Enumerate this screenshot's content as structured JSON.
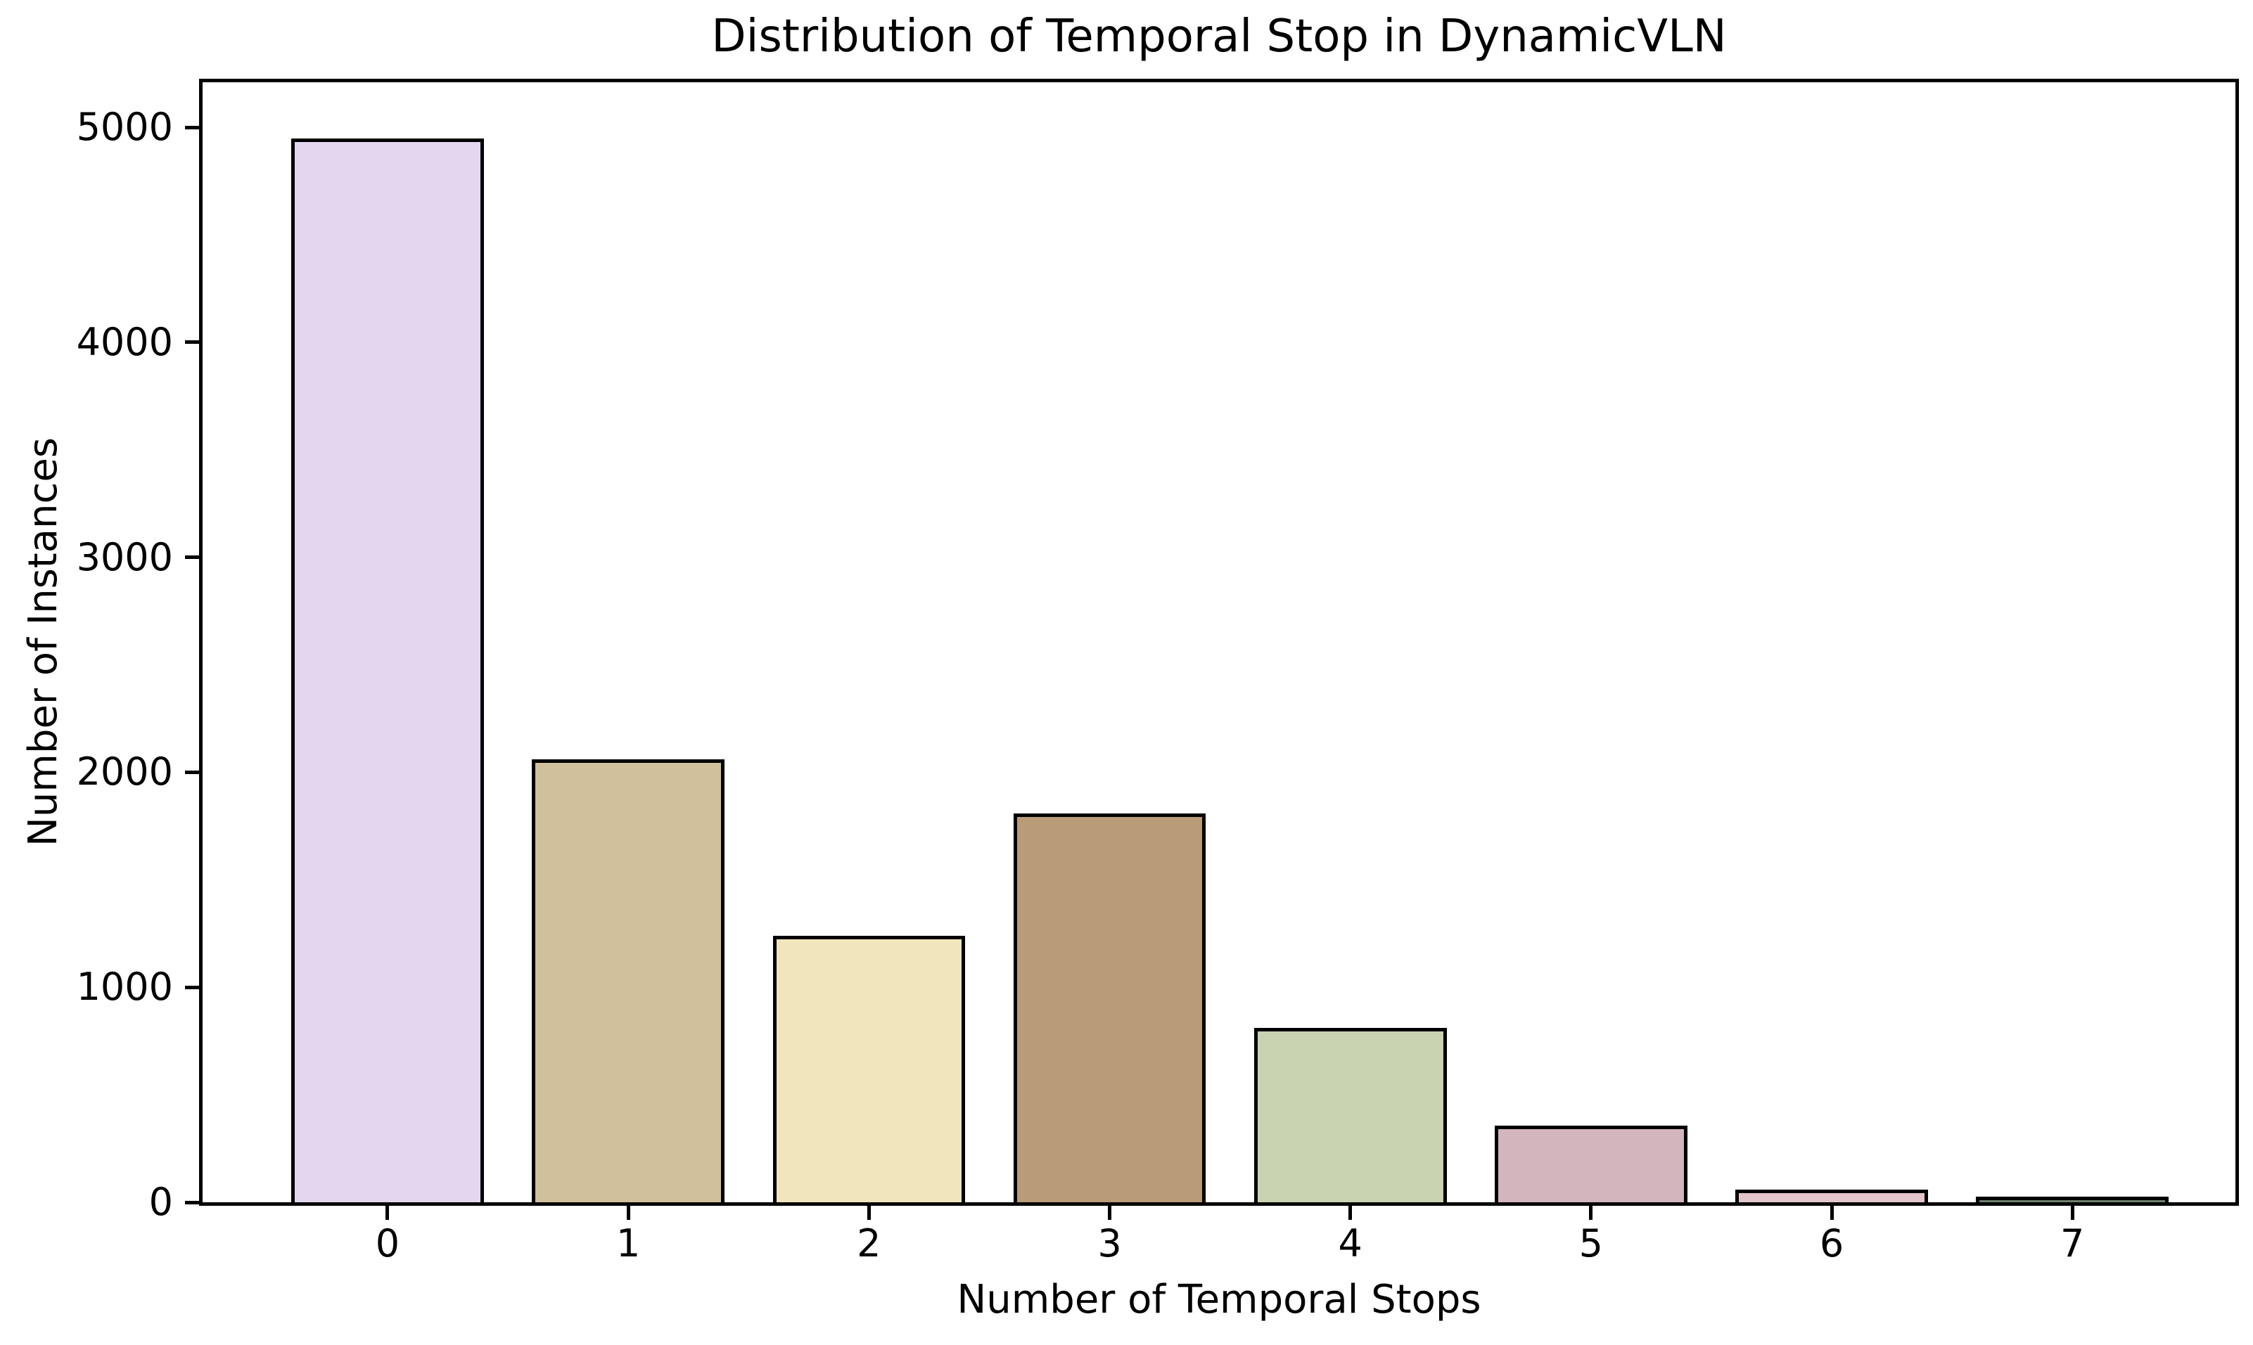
{
  "chart_data": {
    "type": "bar",
    "title": "Distribution of Temporal Stop in DynamicVLN",
    "xlabel": "Number of Temporal Stops",
    "ylabel": "Number of Instances",
    "categories": [
      "0",
      "1",
      "2",
      "3",
      "4",
      "5",
      "6",
      "7"
    ],
    "values": [
      4950,
      2060,
      1240,
      1810,
      810,
      355,
      60,
      25
    ],
    "bar_colors": [
      "#e3d7ef",
      "#d1c09c",
      "#f1e5bd",
      "#b99b77",
      "#c9d3b2",
      "#d3b5be",
      "#e3c6c9",
      "#6f7f6e"
    ],
    "edge_color": "#000000",
    "background_color": "#ffffff",
    "yticks": [
      0,
      1000,
      2000,
      3000,
      4000,
      5000
    ],
    "ylim": [
      0,
      5210
    ],
    "grid": false,
    "legend": false
  }
}
